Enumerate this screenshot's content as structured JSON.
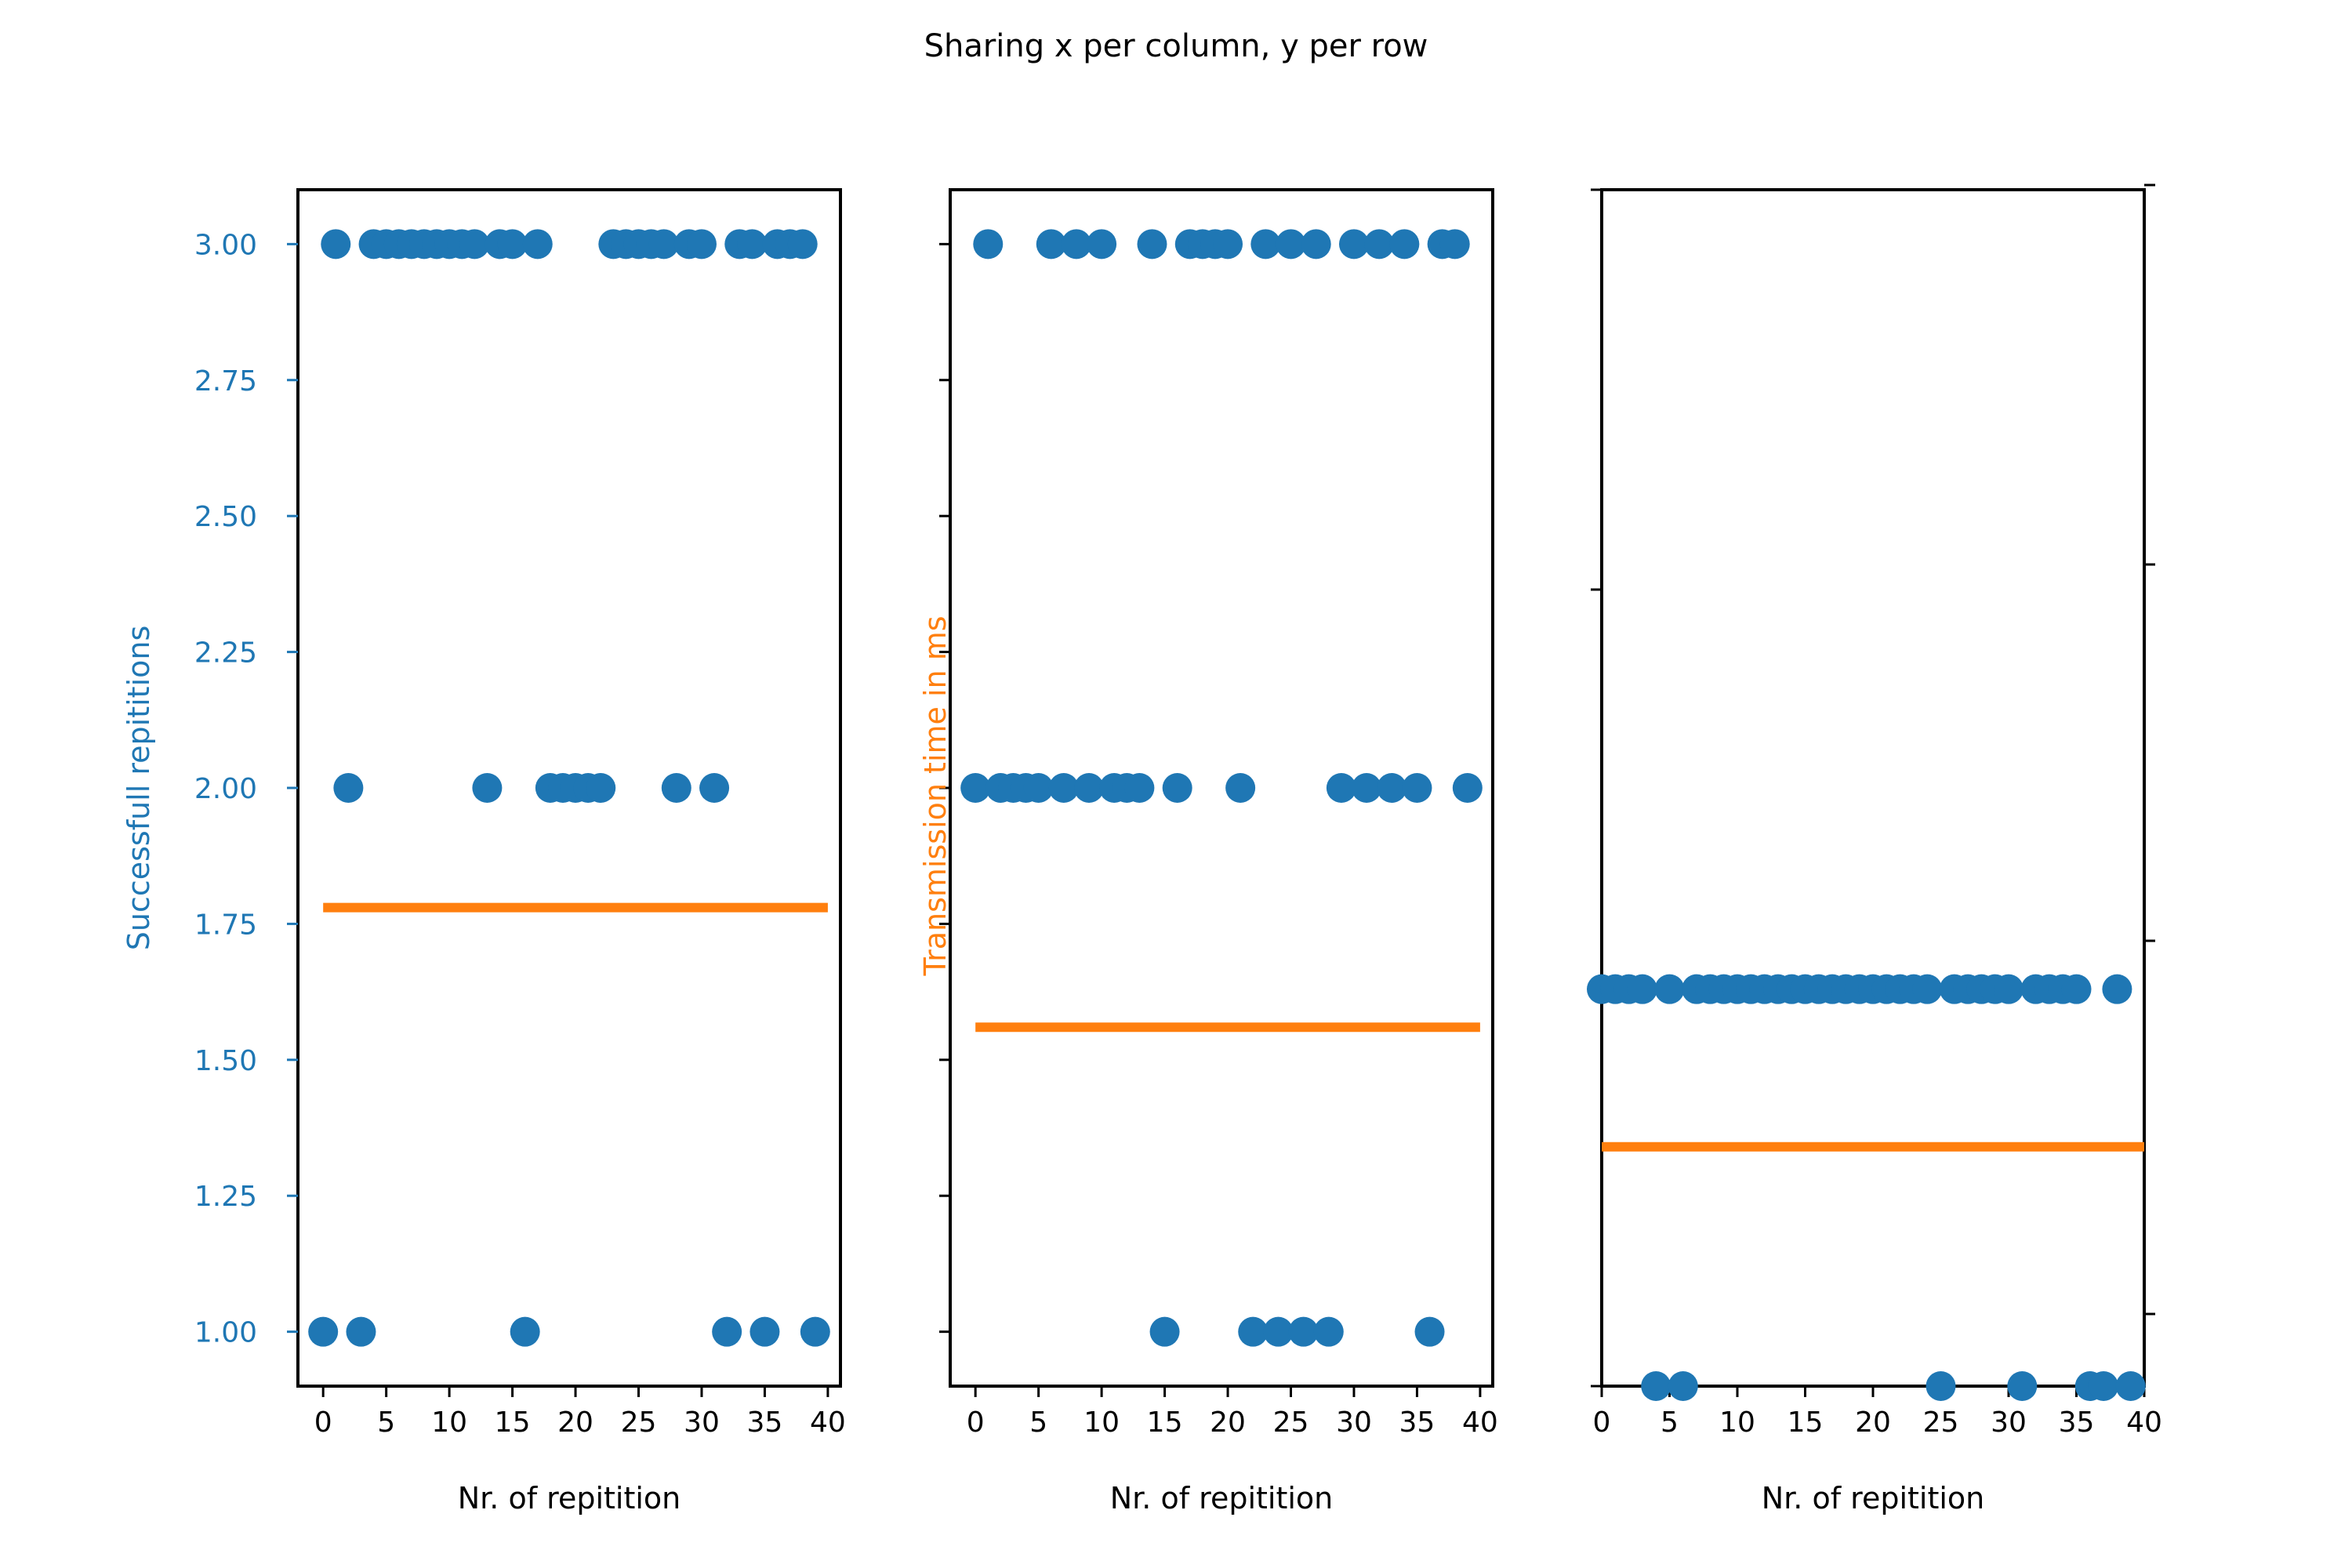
{
  "suptitle": "Sharing x per column, y per row",
  "colors": {
    "points": "#1f77b4",
    "mean_line": "#ff7f0e",
    "left_axis_text": "#1f77b4",
    "right_axis_text": "#ff7f0e",
    "frame": "#000000"
  },
  "chart_data": [
    {
      "type": "scatter",
      "title": "",
      "xlabel": "Nr. of repitition",
      "ylabel": "Successfull repititions",
      "xlim": [
        -2,
        41
      ],
      "ylim": [
        0.9,
        3.1
      ],
      "xticks": [
        0,
        5,
        10,
        15,
        20,
        25,
        30,
        35,
        40
      ],
      "yticks": [
        1.0,
        1.25,
        1.5,
        1.75,
        2.0,
        2.25,
        2.5,
        2.75,
        3.0
      ],
      "ytick_labels": [
        "1.00",
        "1.25",
        "1.50",
        "1.75",
        "2.00",
        "2.25",
        "2.50",
        "2.75",
        "3.00"
      ],
      "series": [
        {
          "x": [
            0,
            1,
            2,
            3,
            4,
            5,
            6,
            7,
            8,
            9,
            10,
            11,
            12,
            13,
            14,
            15,
            16,
            17,
            18,
            19,
            20,
            21,
            22,
            23,
            24,
            25,
            26,
            27,
            28,
            29,
            30,
            31,
            32,
            33,
            34,
            35,
            36,
            37,
            38,
            39
          ],
          "y": [
            1,
            3,
            2,
            1,
            3,
            3,
            3,
            3,
            3,
            3,
            3,
            3,
            3,
            2,
            3,
            3,
            1,
            3,
            2,
            2,
            2,
            2,
            2,
            3,
            3,
            3,
            3,
            3,
            2,
            3,
            3,
            2,
            1,
            3,
            3,
            1,
            3,
            3,
            3,
            1
          ]
        }
      ],
      "mean_line": {
        "x_from": 0,
        "x_to": 40,
        "y": 1.78
      }
    },
    {
      "type": "scatter",
      "title": "",
      "xlabel": "Nr. of repitition",
      "ylabel": "",
      "secondary_ylabel": "Transmission time in ms",
      "xlim": [
        -2,
        41
      ],
      "ylim": [
        0.9,
        3.1
      ],
      "xticks": [
        0,
        5,
        10,
        15,
        20,
        25,
        30,
        35,
        40
      ],
      "yticks": [
        1.0,
        1.25,
        1.5,
        1.75,
        2.0,
        2.25,
        2.5,
        2.75,
        3.0
      ],
      "series": [
        {
          "x": [
            0,
            1,
            2,
            3,
            4,
            5,
            6,
            7,
            8,
            9,
            10,
            11,
            12,
            13,
            14,
            15,
            16,
            17,
            18,
            19,
            20,
            21,
            22,
            23,
            24,
            25,
            26,
            27,
            28,
            29,
            30,
            31,
            32,
            33,
            34,
            35,
            36,
            37,
            38,
            39
          ],
          "y": [
            2,
            3,
            2,
            2,
            2,
            2,
            3,
            2,
            3,
            2,
            3,
            2,
            2,
            2,
            3,
            1,
            2,
            3,
            3,
            3,
            3,
            2,
            1,
            3,
            1,
            3,
            1,
            3,
            1,
            2,
            3,
            2,
            3,
            2,
            3,
            2,
            1,
            3,
            3,
            2
          ]
        }
      ],
      "mean_line": {
        "x_from": 0,
        "x_to": 40,
        "y": 1.56
      }
    },
    {
      "type": "scatter",
      "title": "",
      "xlabel": "Nr. of repitition",
      "ylabel": "",
      "xlim": [
        0,
        40
      ],
      "ylim": [
        0.9,
        3.1
      ],
      "xticks": [
        0,
        5,
        10,
        15,
        20,
        25,
        30,
        35,
        40
      ],
      "series": [
        {
          "x": [
            0,
            1,
            2,
            3,
            4,
            5,
            6,
            7,
            8,
            9,
            10,
            11,
            12,
            13,
            14,
            15,
            16,
            17,
            18,
            19,
            20,
            21,
            22,
            23,
            24,
            25,
            26,
            27,
            28,
            29,
            30,
            31,
            32,
            33,
            34,
            35,
            36,
            37,
            38,
            39
          ],
          "y": [
            1.63,
            1.63,
            1.63,
            1.63,
            0.9,
            1.63,
            0.9,
            1.63,
            1.63,
            1.63,
            1.63,
            1.63,
            1.63,
            1.63,
            1.63,
            1.63,
            1.63,
            1.63,
            1.63,
            1.63,
            1.63,
            1.63,
            1.63,
            1.63,
            1.63,
            0.9,
            1.63,
            1.63,
            1.63,
            1.63,
            1.63,
            0.9,
            1.63,
            1.63,
            1.63,
            1.63,
            0.9,
            0.9,
            1.63,
            0.9
          ]
        }
      ],
      "mean_line": {
        "x_from": 0,
        "x_to": 40,
        "y": 1.34
      }
    }
  ]
}
